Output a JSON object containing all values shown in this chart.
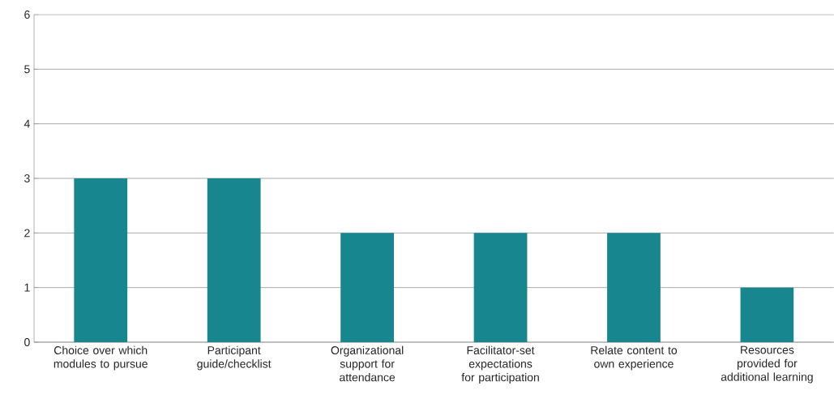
{
  "chart_data": {
    "type": "bar",
    "categories": [
      "Choice over which modules to pursue",
      "Participant guide/checklist",
      "Organizational support for attendance",
      "Facilitator-set expectations for participation",
      "Relate content to own experience",
      "Resources provided for additional learning"
    ],
    "values": [
      3,
      3,
      2,
      2,
      2,
      1
    ],
    "color": "#17868f",
    "ylim": [
      0,
      6
    ],
    "yticks": [
      0,
      1,
      2,
      3,
      4,
      5,
      6
    ],
    "grid": "y"
  }
}
